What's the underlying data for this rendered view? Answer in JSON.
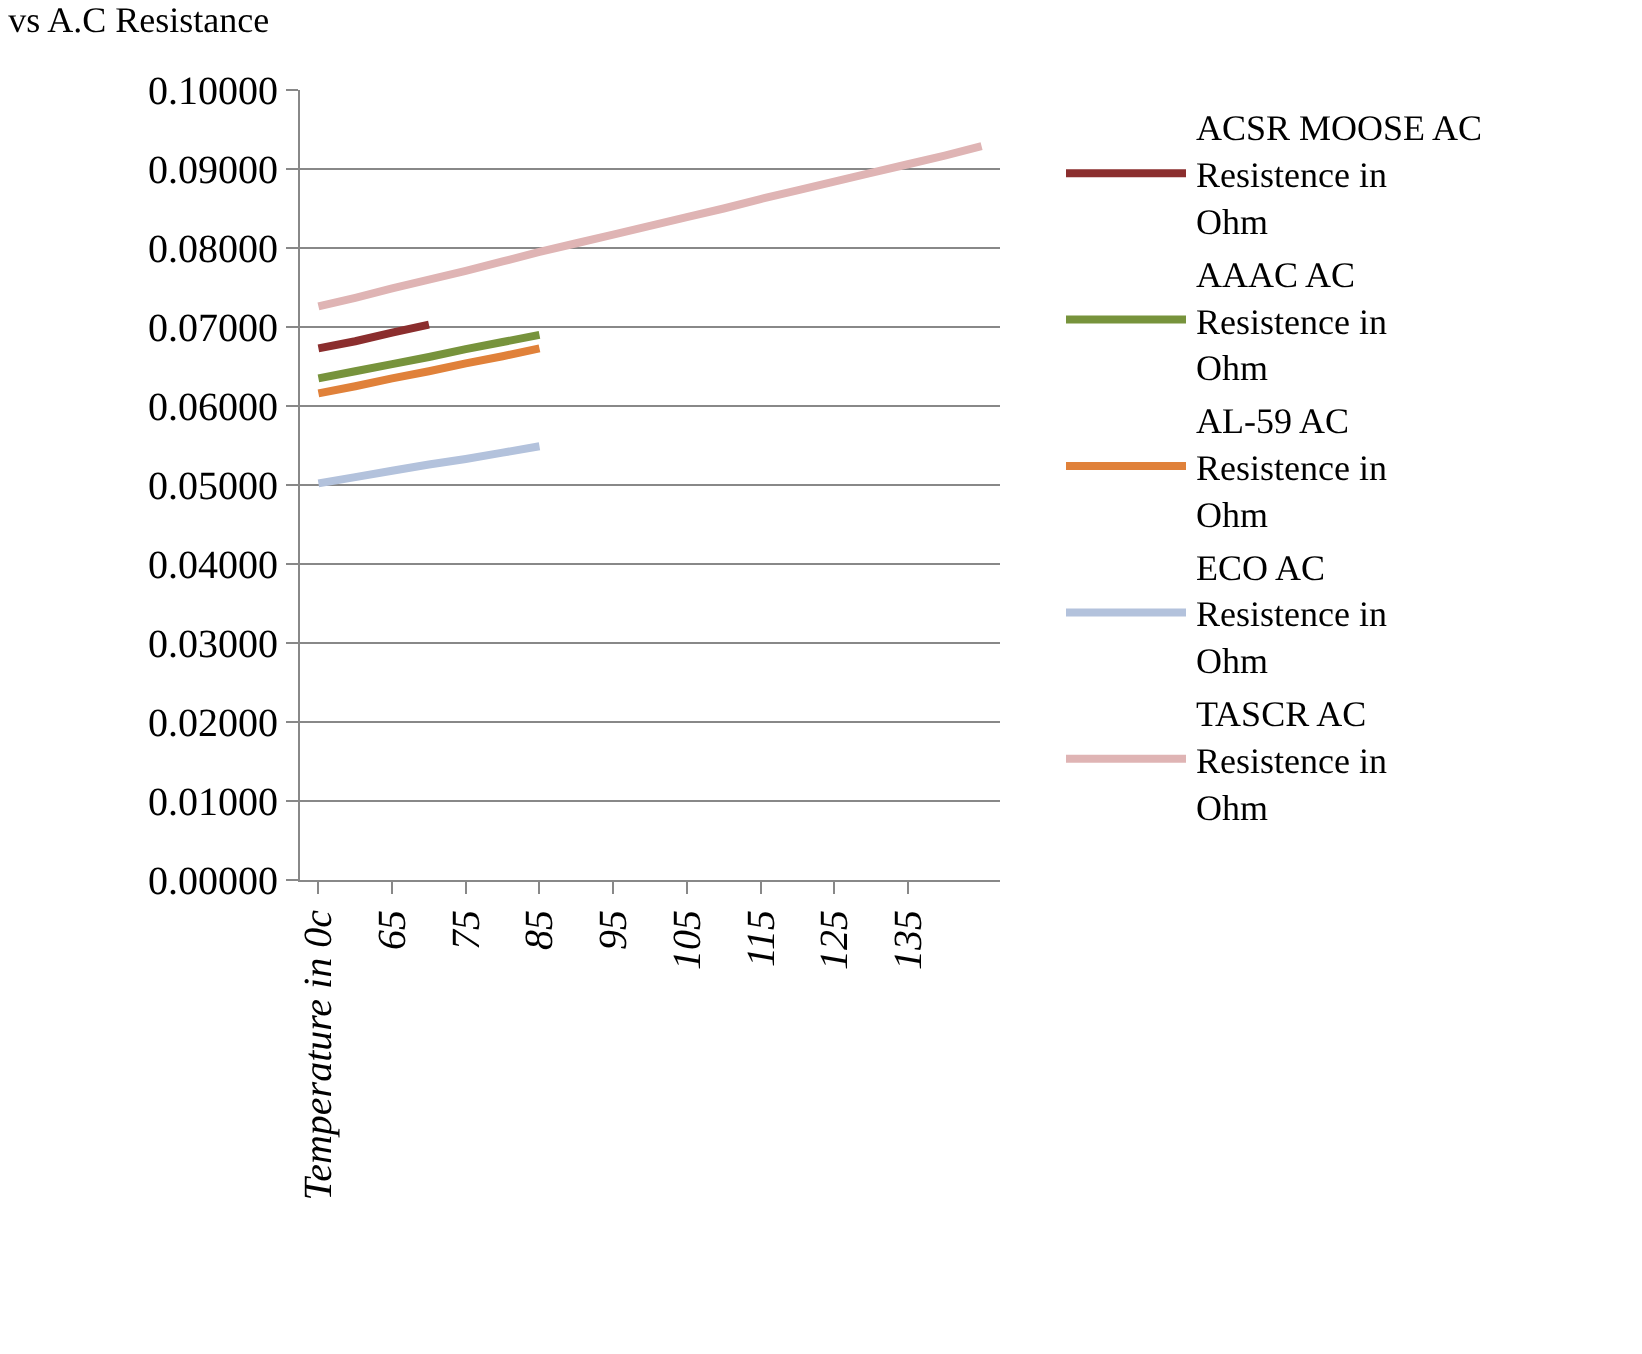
{
  "chart_data": {
    "type": "line",
    "title": "vs A.C Resistance",
    "categories": [
      "Temperature in 0c",
      null,
      "65",
      null,
      "75",
      null,
      "85",
      null,
      "95",
      null,
      "105",
      null,
      "115",
      null,
      "125",
      null,
      "135",
      null,
      null
    ],
    "series": [
      {
        "name": "ACSR MOOSE AC Resistence in Ohm",
        "color": "#8b2e2e",
        "values": [
          0.0673,
          0.0682,
          0.0693,
          0.0703,
          null,
          null,
          null,
          null,
          null,
          null,
          null,
          null,
          null,
          null,
          null,
          null,
          null,
          null,
          null
        ]
      },
      {
        "name": "AAAC AC Resistence in Ohm",
        "color": "#77933c",
        "values": [
          0.0635,
          0.0644,
          0.0653,
          0.0662,
          0.0672,
          0.0681,
          0.069,
          null,
          null,
          null,
          null,
          null,
          null,
          null,
          null,
          null,
          null,
          null,
          null
        ]
      },
      {
        "name": "AL-59 AC Resistence in Ohm",
        "color": "#e0813a",
        "values": [
          0.0616,
          0.0625,
          0.0635,
          0.0644,
          0.0654,
          0.0663,
          0.0673,
          null,
          null,
          null,
          null,
          null,
          null,
          null,
          null,
          null,
          null,
          null,
          null
        ]
      },
      {
        "name": "ECO AC Resistence in Ohm",
        "color": "#b3c2dc",
        "values": [
          0.0502,
          0.051,
          0.0518,
          0.0526,
          0.0533,
          0.0541,
          0.0549,
          null,
          null,
          null,
          null,
          null,
          null,
          null,
          null,
          null,
          null,
          null,
          null
        ]
      },
      {
        "name": "TASCR AC Resistence in Ohm",
        "color": "#dfb4b4",
        "values": [
          0.0726,
          0.0737,
          0.0749,
          0.076,
          0.0771,
          0.0783,
          0.0795,
          0.0806,
          0.0817,
          0.0828,
          0.0839,
          0.085,
          0.0862,
          0.0873,
          0.0884,
          0.0895,
          0.0906,
          0.0917,
          0.0929
        ]
      }
    ],
    "ylim": [
      0,
      0.1
    ],
    "yticks": [
      {
        "value": 0,
        "label": "0.00000"
      },
      {
        "value": 0.01,
        "label": "0.01000"
      },
      {
        "value": 0.02,
        "label": "0.02000"
      },
      {
        "value": 0.03,
        "label": "0.03000"
      },
      {
        "value": 0.04,
        "label": "0.04000"
      },
      {
        "value": 0.05,
        "label": "0.05000"
      },
      {
        "value": 0.06,
        "label": "0.06000"
      },
      {
        "value": 0.07,
        "label": "0.07000"
      },
      {
        "value": 0.08,
        "label": "0.08000"
      },
      {
        "value": 0.09,
        "label": "0.09000"
      },
      {
        "value": 0.1,
        "label": "0.10000"
      }
    ],
    "grid": "y",
    "legend": "right",
    "marker": "none",
    "line_style": "solid"
  }
}
